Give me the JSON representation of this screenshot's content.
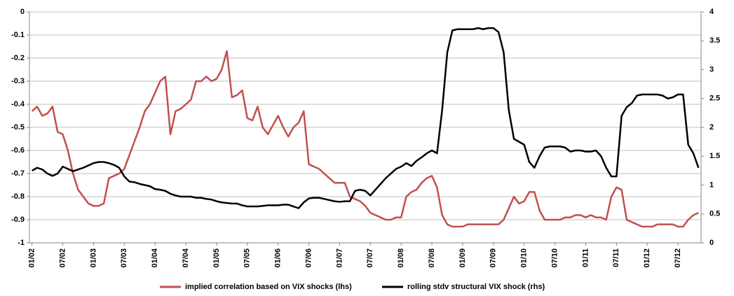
{
  "chart_data": {
    "type": "line",
    "categories": [
      "01/02",
      null,
      null,
      null,
      null,
      null,
      "07/02",
      null,
      null,
      null,
      null,
      null,
      "01/03",
      null,
      null,
      null,
      null,
      null,
      "07/03",
      null,
      null,
      null,
      null,
      null,
      "01/04",
      null,
      null,
      null,
      null,
      null,
      "07/04",
      null,
      null,
      null,
      null,
      null,
      "01/05",
      null,
      null,
      null,
      null,
      null,
      "07/05",
      null,
      null,
      null,
      null,
      null,
      "01/06",
      null,
      null,
      null,
      null,
      null,
      "07/06",
      null,
      null,
      null,
      null,
      null,
      "01/07",
      null,
      null,
      null,
      null,
      null,
      "07/07",
      null,
      null,
      null,
      null,
      null,
      "01/08",
      null,
      null,
      null,
      null,
      null,
      "07/08",
      null,
      null,
      null,
      null,
      null,
      "01/09",
      null,
      null,
      null,
      null,
      null,
      "07/09",
      null,
      null,
      null,
      null,
      null,
      "01/10",
      null,
      null,
      null,
      null,
      null,
      "07/10",
      null,
      null,
      null,
      null,
      null,
      "01/11",
      null,
      null,
      null,
      null,
      null,
      "07/11",
      null,
      null,
      null,
      null,
      null,
      "01/12",
      null,
      null,
      null,
      null,
      null,
      "07/12",
      null,
      null,
      null,
      null
    ],
    "series": [
      {
        "name": "implied correlation based on VIX shocks (lhs)",
        "color": "#c0504d",
        "axis": "y",
        "values": [
          -0.43,
          -0.41,
          -0.45,
          -0.44,
          -0.41,
          -0.52,
          -0.53,
          -0.6,
          -0.7,
          -0.77,
          -0.8,
          -0.83,
          -0.84,
          -0.84,
          -0.83,
          -0.72,
          -0.71,
          -0.7,
          -0.68,
          -0.62,
          -0.56,
          -0.5,
          -0.43,
          -0.4,
          -0.35,
          -0.3,
          -0.28,
          -0.53,
          -0.43,
          -0.42,
          -0.4,
          -0.38,
          -0.3,
          -0.3,
          -0.28,
          -0.3,
          -0.29,
          -0.25,
          -0.17,
          -0.37,
          -0.36,
          -0.34,
          -0.46,
          -0.47,
          -0.41,
          -0.5,
          -0.53,
          -0.49,
          -0.45,
          -0.5,
          -0.54,
          -0.5,
          -0.48,
          -0.43,
          -0.66,
          -0.67,
          -0.68,
          -0.7,
          -0.72,
          -0.74,
          -0.74,
          -0.74,
          -0.8,
          -0.81,
          -0.82,
          -0.84,
          -0.87,
          -0.88,
          -0.89,
          -0.9,
          -0.9,
          -0.89,
          -0.89,
          -0.8,
          -0.78,
          -0.77,
          -0.74,
          -0.72,
          -0.71,
          -0.76,
          -0.88,
          -0.92,
          -0.93,
          -0.93,
          -0.93,
          -0.92,
          -0.92,
          -0.92,
          -0.92,
          -0.92,
          -0.92,
          -0.92,
          -0.9,
          -0.85,
          -0.8,
          -0.83,
          -0.82,
          -0.78,
          -0.78,
          -0.86,
          -0.9,
          -0.9,
          -0.9,
          -0.9,
          -0.89,
          -0.89,
          -0.88,
          -0.88,
          -0.89,
          -0.88,
          -0.89,
          -0.89,
          -0.9,
          -0.8,
          -0.76,
          -0.77,
          -0.9,
          -0.91,
          -0.92,
          -0.93,
          -0.93,
          -0.93,
          -0.92,
          -0.92,
          -0.92,
          -0.92,
          -0.93,
          -0.93,
          -0.9,
          -0.88,
          -0.87
        ]
      },
      {
        "name": "rolling stdv structural VIX shock (rhs)",
        "color": "#000000",
        "axis": "y2",
        "values": [
          1.25,
          1.3,
          1.27,
          1.2,
          1.16,
          1.2,
          1.32,
          1.28,
          1.24,
          1.27,
          1.3,
          1.34,
          1.38,
          1.4,
          1.4,
          1.38,
          1.35,
          1.3,
          1.15,
          1.06,
          1.05,
          1.02,
          1.0,
          0.98,
          0.93,
          0.92,
          0.9,
          0.85,
          0.82,
          0.8,
          0.8,
          0.8,
          0.78,
          0.78,
          0.76,
          0.75,
          0.72,
          0.7,
          0.69,
          0.68,
          0.68,
          0.65,
          0.63,
          0.63,
          0.63,
          0.64,
          0.65,
          0.65,
          0.65,
          0.66,
          0.66,
          0.63,
          0.6,
          0.7,
          0.77,
          0.78,
          0.78,
          0.76,
          0.74,
          0.72,
          0.71,
          0.72,
          0.72,
          0.9,
          0.92,
          0.9,
          0.82,
          0.92,
          1.02,
          1.12,
          1.2,
          1.28,
          1.32,
          1.38,
          1.33,
          1.42,
          1.48,
          1.55,
          1.6,
          1.55,
          2.3,
          3.3,
          3.68,
          3.7,
          3.7,
          3.7,
          3.7,
          3.72,
          3.7,
          3.72,
          3.72,
          3.65,
          3.3,
          2.3,
          1.8,
          1.75,
          1.7,
          1.4,
          1.3,
          1.5,
          1.65,
          1.67,
          1.67,
          1.67,
          1.65,
          1.58,
          1.6,
          1.6,
          1.58,
          1.58,
          1.6,
          1.5,
          1.3,
          1.15,
          1.15,
          2.2,
          2.35,
          2.42,
          2.55,
          2.57,
          2.57,
          2.57,
          2.57,
          2.55,
          2.5,
          2.52,
          2.57,
          2.57,
          1.7,
          1.55,
          1.3
        ]
      }
    ],
    "ylim": [
      -1,
      0
    ],
    "yticks": [
      0,
      -0.1,
      -0.2,
      -0.3,
      -0.4,
      -0.5,
      -0.6,
      -0.7,
      -0.8,
      -0.9,
      -1
    ],
    "y2lim": [
      0,
      4
    ],
    "y2ticks": [
      0,
      0.5,
      1,
      1.5,
      2,
      2.5,
      3,
      3.5,
      4
    ],
    "grid": true,
    "legend": "bottom"
  }
}
